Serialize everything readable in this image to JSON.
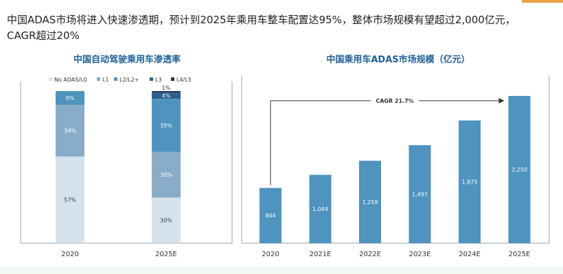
{
  "headline": {
    "line1": "中国ADAS市场将进入快速渗透期，预计到2025年乘用车整车配置达95%，整体市场规模有望超过2,000亿元，",
    "line2": "CAGR超过20%"
  },
  "colors": {
    "title": "#1f5f99",
    "no_adas": "#d4e2ee",
    "l1": "#89acc8",
    "l2": "#4f93bf",
    "l3": "#2d5f8e",
    "l45": "#1b3553",
    "market_bar": "#4f93bf"
  },
  "chart_data": [
    {
      "type": "bar",
      "stacked": true,
      "title": "中国自动驾驶乘用车渗透率",
      "categories": [
        "2020",
        "2025E"
      ],
      "series": [
        {
          "name": "No ADAS/L0",
          "values": [
            57,
            30
          ],
          "labels": [
            "57%",
            "30%"
          ]
        },
        {
          "name": "L1",
          "values": [
            34,
            30
          ],
          "labels": [
            "34%",
            "30%"
          ]
        },
        {
          "name": "L2/L2+",
          "values": [
            9,
            35
          ],
          "labels": [
            "9%",
            "35%"
          ]
        },
        {
          "name": "L3",
          "values": [
            0,
            4
          ],
          "labels": [
            "",
            "4%"
          ]
        },
        {
          "name": "L4/L5",
          "values": [
            0,
            1
          ],
          "labels": [
            "",
            "1%"
          ]
        }
      ],
      "ylim": [
        0,
        100
      ],
      "legend": "top"
    },
    {
      "type": "bar",
      "title": "中国乘用车ADAS市场规模（亿元）",
      "categories": [
        "2020",
        "2021E",
        "2022E",
        "2023E",
        "2024E",
        "2025E"
      ],
      "values": [
        844,
        1044,
        1259,
        1497,
        1875,
        2250
      ],
      "labels": [
        "844",
        "1,044",
        "1,259",
        "1,497",
        "1,875",
        "2,250"
      ],
      "annotation": "CAGR 21.7%",
      "ylim": [
        0,
        2250
      ]
    }
  ]
}
